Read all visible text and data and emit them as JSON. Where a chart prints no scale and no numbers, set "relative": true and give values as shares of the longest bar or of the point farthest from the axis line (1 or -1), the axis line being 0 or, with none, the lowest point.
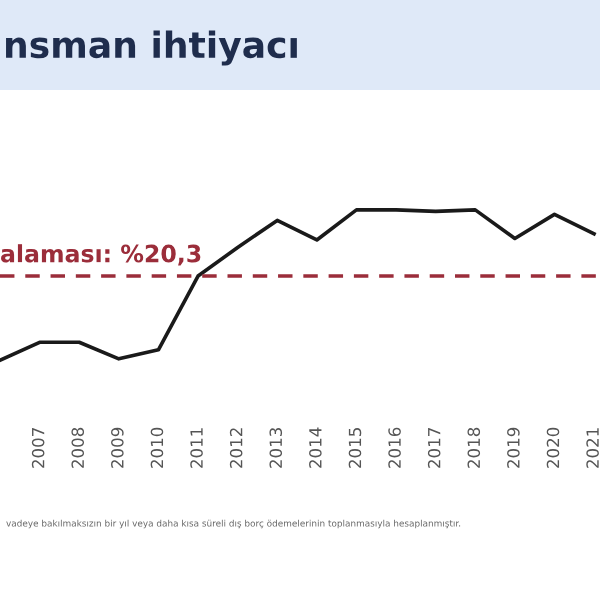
{
  "chart_data": {
    "type": "line",
    "title": "nsman ihtiyacı",
    "relative": true,
    "categories": [
      null,
      "2007",
      "2008",
      "2009",
      "2010",
      "2011",
      "2012",
      "2013",
      "2014",
      "2015",
      "2016",
      "2017",
      "2018",
      "2019",
      "2020",
      "2021"
    ],
    "series": [
      {
        "color": "#1a1a1a",
        "values": [
          0,
          0.12,
          0.12,
          0.01,
          0.07,
          0.56,
          0.75,
          0.93,
          0.8,
          1.0,
          1.0,
          0.99,
          1.0,
          0.81,
          0.97,
          0.84
        ]
      }
    ],
    "ref_lines": [
      {
        "axis": "y",
        "value": 0.56,
        "label": "alaması: %20,3",
        "color": "#9b2d3a",
        "line_style": "dashed"
      }
    ],
    "annotations": [
      "vadeye bakılmaksızın bir yıl veya daha kısa süreli dış borç ödemelerinin toplanmasıyla hesaplanmıştır."
    ],
    "grid": false,
    "legend": false,
    "marker": "none",
    "line_style": "solid"
  }
}
